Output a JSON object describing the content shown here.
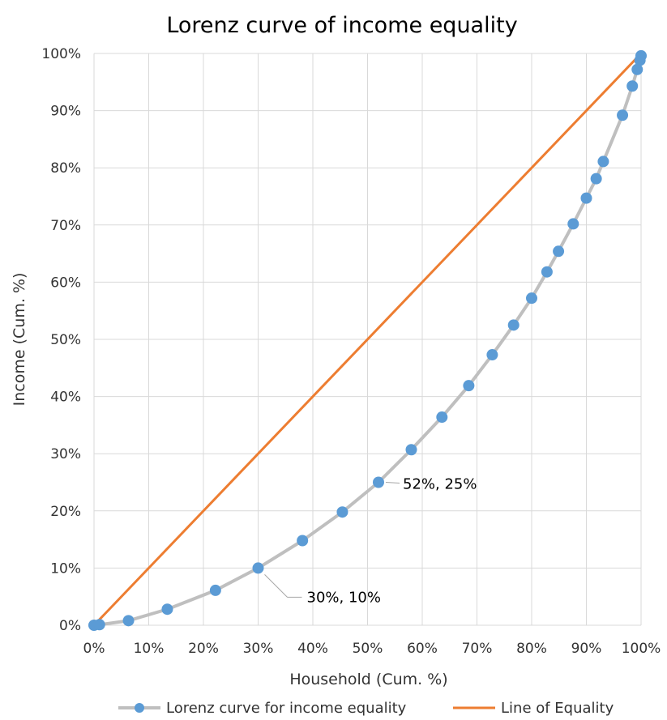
{
  "chart_data": {
    "type": "line",
    "title": "Lorenz curve of income equality",
    "xlabel": "Household (Cum. %)",
    "ylabel": "Income (Cum. %)",
    "xlim": [
      0,
      100
    ],
    "ylim": [
      0,
      100
    ],
    "x_ticks": [
      "0%",
      "10%",
      "20%",
      "30%",
      "40%",
      "50%",
      "60%",
      "70%",
      "80%",
      "90%",
      "100%"
    ],
    "y_ticks": [
      "0%",
      "10%",
      "20%",
      "30%",
      "40%",
      "50%",
      "60%",
      "70%",
      "80%",
      "90%",
      "100%"
    ],
    "grid": true,
    "legend_position": "bottom",
    "series": [
      {
        "name": "Lorenz curve for income equality",
        "line_color": "#bfbfbf",
        "marker_color": "#5b9bd5",
        "points": [
          [
            0,
            0
          ],
          [
            1,
            0.1
          ],
          [
            6.3,
            0.8
          ],
          [
            13.4,
            2.8
          ],
          [
            22.2,
            6.1
          ],
          [
            30,
            10
          ],
          [
            38.1,
            14.8
          ],
          [
            45.4,
            19.8
          ],
          [
            52,
            25
          ],
          [
            58,
            30.7
          ],
          [
            63.6,
            36.4
          ],
          [
            68.5,
            41.9
          ],
          [
            72.8,
            47.3
          ],
          [
            76.7,
            52.5
          ],
          [
            80,
            57.2
          ],
          [
            82.8,
            61.8
          ],
          [
            84.9,
            65.4
          ],
          [
            87.6,
            70.2
          ],
          [
            90,
            74.7
          ],
          [
            91.8,
            78.1
          ],
          [
            93.1,
            81.1
          ],
          [
            96.6,
            89.2
          ],
          [
            98.4,
            94.3
          ],
          [
            99.3,
            97.2
          ],
          [
            99.8,
            98.8
          ],
          [
            100,
            99.6
          ]
        ]
      },
      {
        "name": "Line of Equality",
        "line_color": "#ed7d31",
        "points": [
          [
            0,
            0
          ],
          [
            100,
            100
          ]
        ]
      }
    ],
    "annotations": [
      {
        "text": "30%, 10%",
        "x": 30,
        "y": 10
      },
      {
        "text": "52%, 25%",
        "x": 52,
        "y": 25
      }
    ]
  }
}
